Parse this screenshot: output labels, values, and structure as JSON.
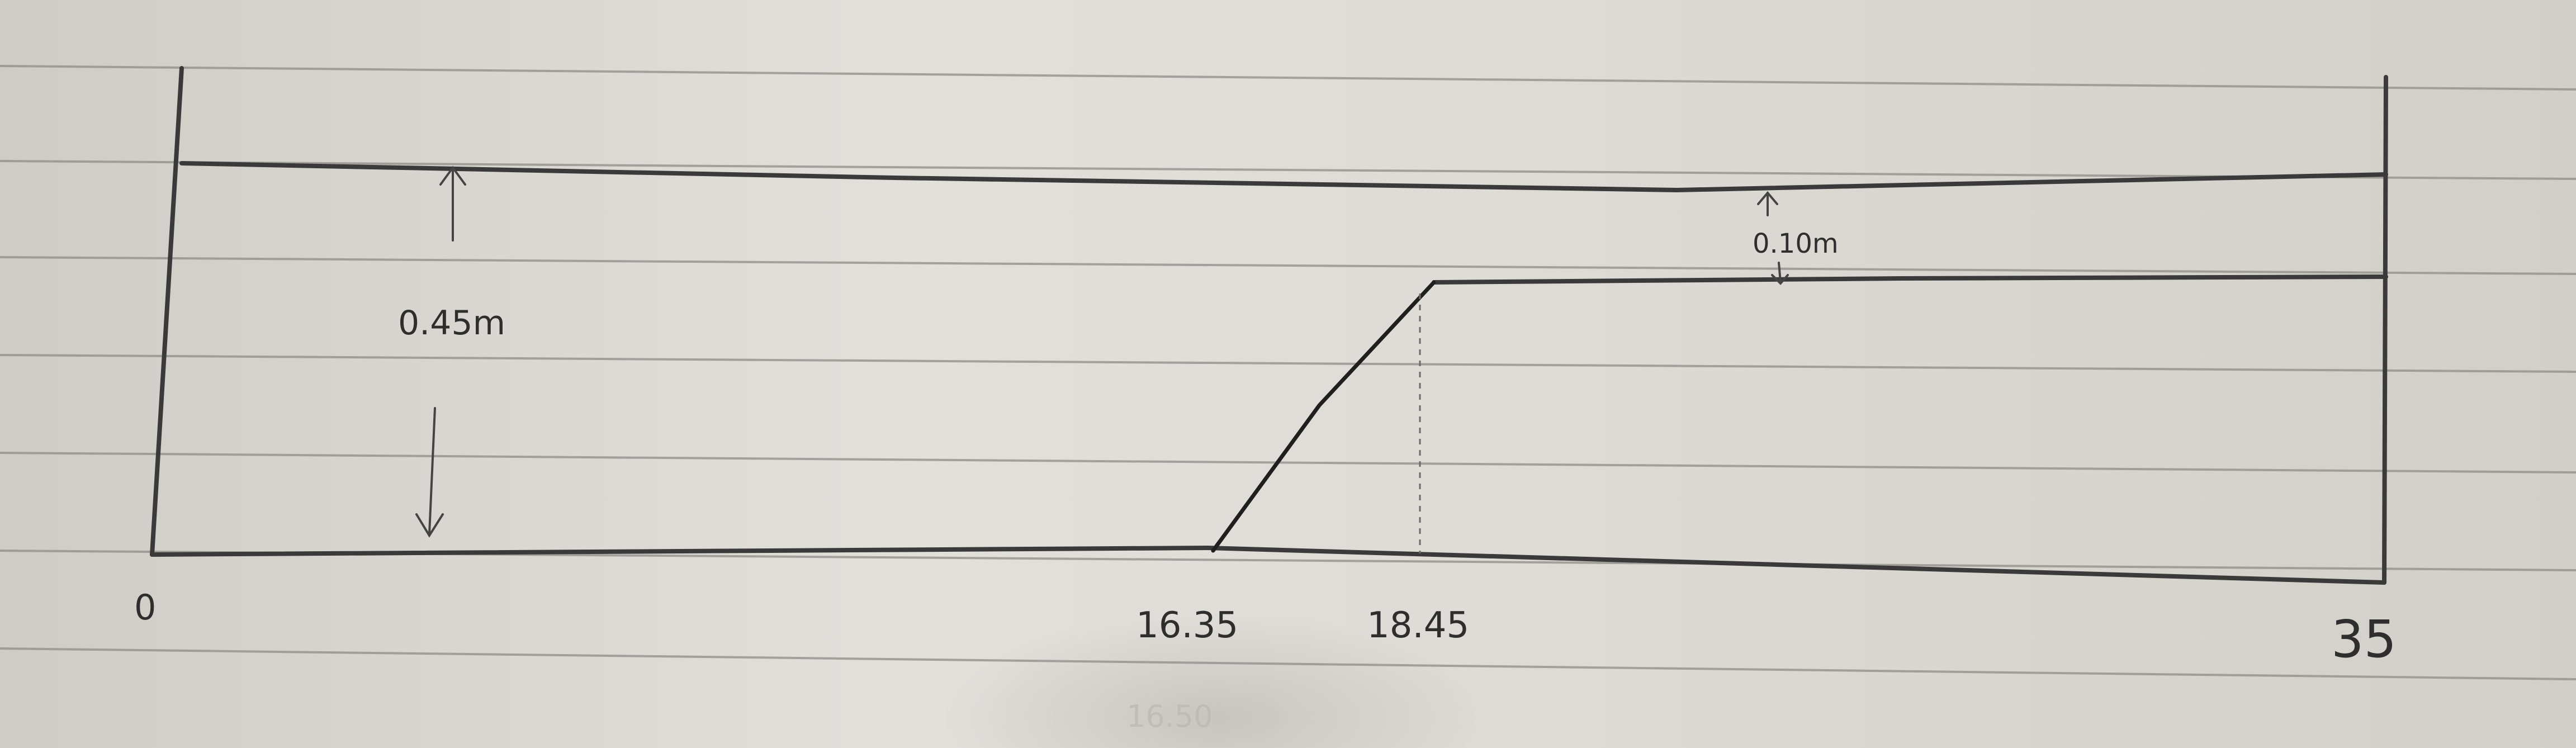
{
  "sketch": {
    "height_label": "0.45m",
    "gap_label": "0.10m",
    "x_labels": {
      "start": "0",
      "ramp_start": "16.35",
      "ramp_end": "18.45",
      "end": "35"
    },
    "faint_label": "16.50"
  },
  "colors": {
    "paper": "#d9d6d0",
    "ruled_line": "#8f8c88",
    "pencil": "#3a3a3a"
  }
}
